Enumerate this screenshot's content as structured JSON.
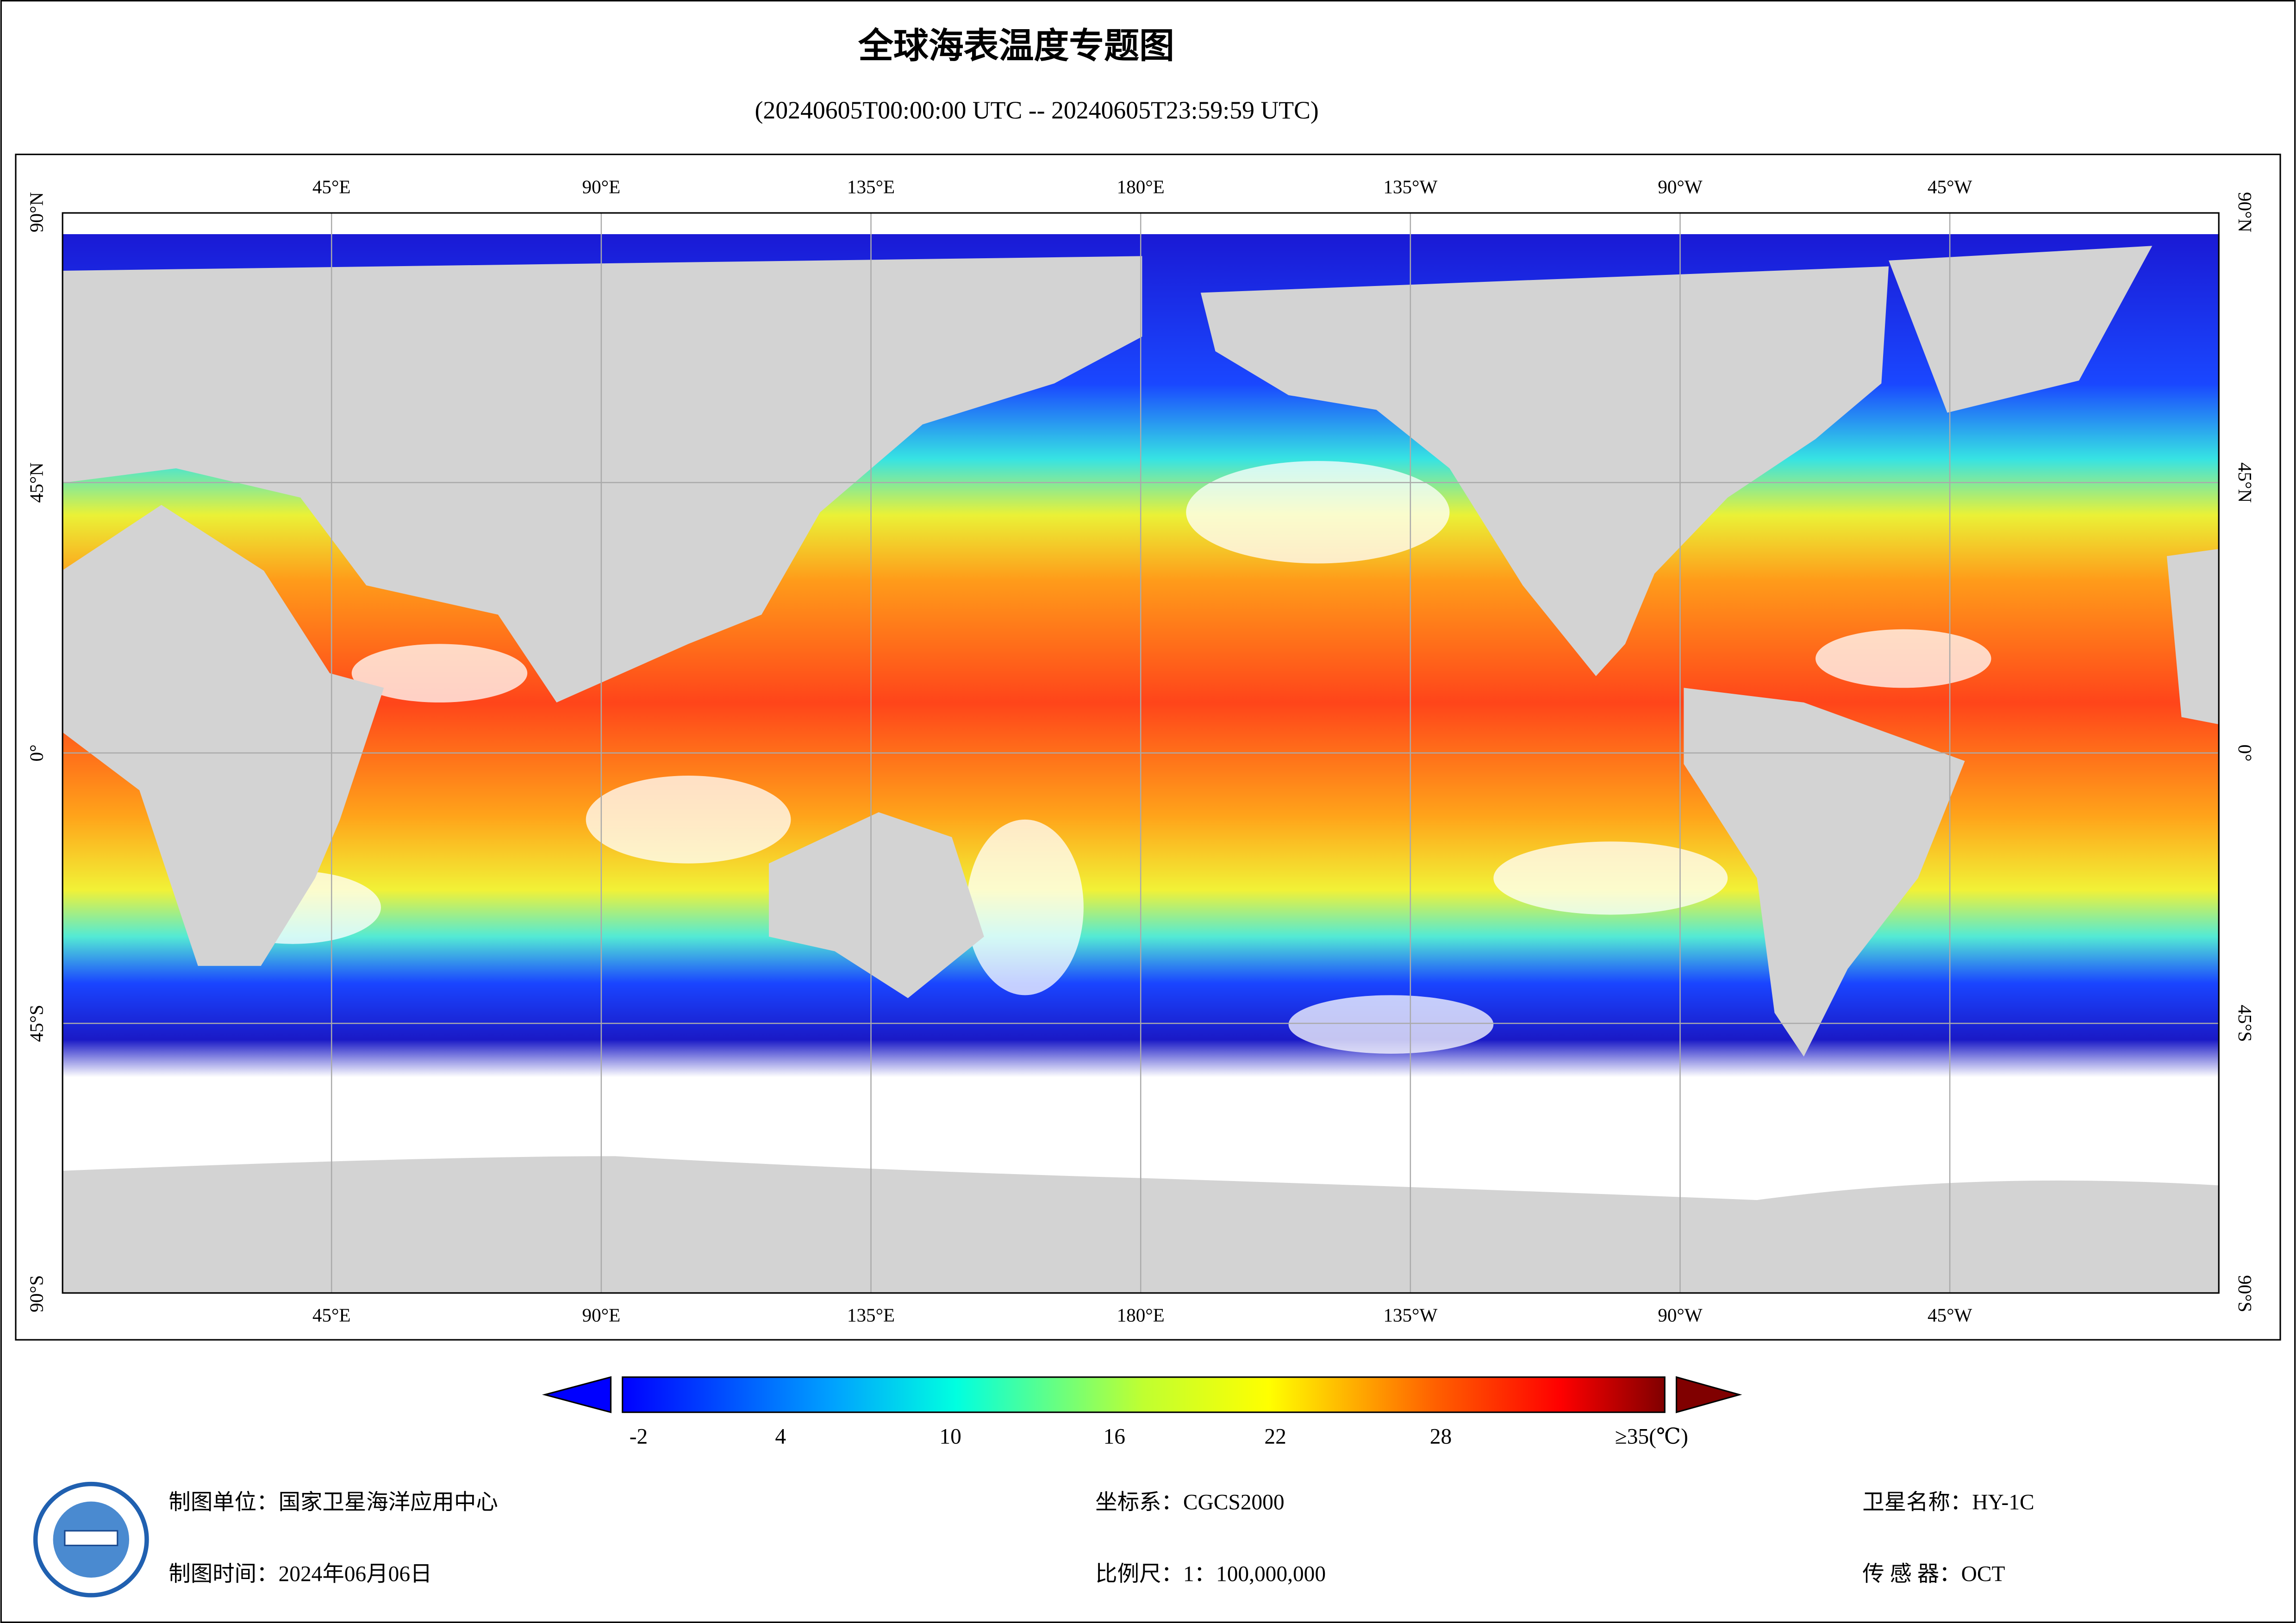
{
  "header": {
    "title": "全球海表温度专题图",
    "subtitle": "(20240605T00:00:00 UTC -- 20240605T23:59:59 UTC)"
  },
  "map": {
    "longitude_labels": [
      "45°E",
      "90°E",
      "135°E",
      "180°E",
      "135°W",
      "90°W",
      "45°W"
    ],
    "latitude_labels": [
      "90°N",
      "45°N",
      "0°",
      "45°S",
      "90°S"
    ]
  },
  "legend": {
    "labels": [
      "-2",
      "4",
      "10",
      "16",
      "22",
      "28",
      "≥35(℃)"
    ]
  },
  "footer": {
    "producer": "制图单位：国家卫星海洋应用中心",
    "time": "制图时间：2024年06月06日",
    "crs": "坐标系：CGCS2000",
    "scale": "比例尺：1：100,000,000",
    "satellite": "卫星名称：HY-1C",
    "sensor": "传 感 器：OCT"
  }
}
